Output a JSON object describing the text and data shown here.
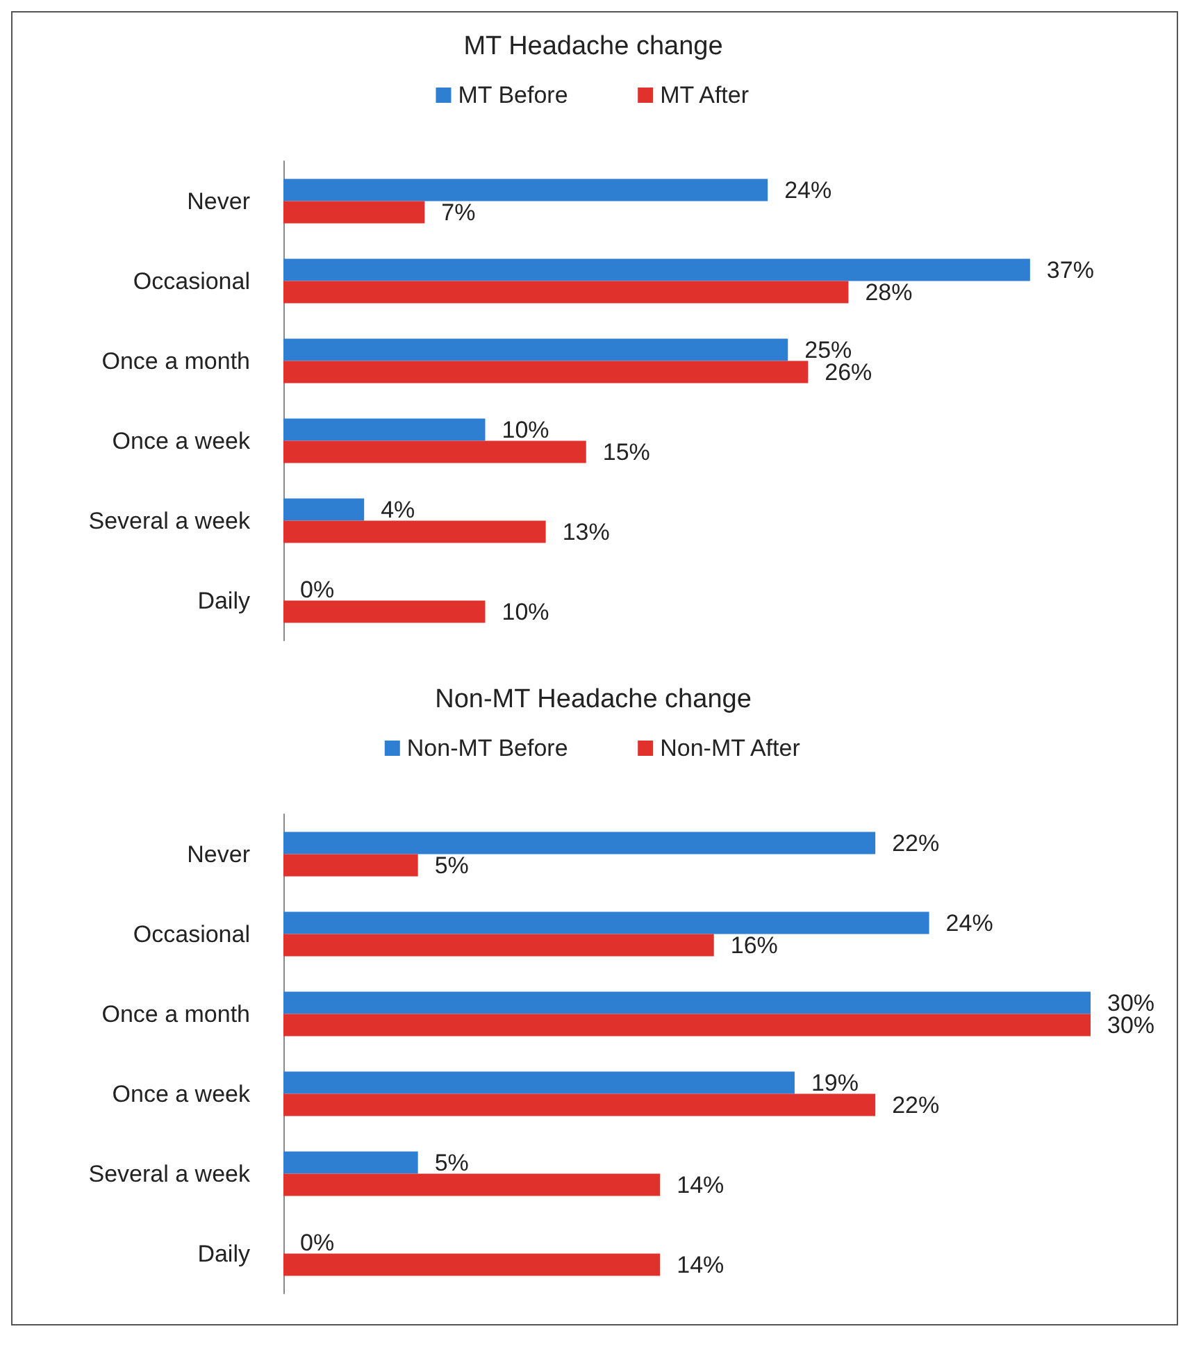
{
  "chart_data": [
    {
      "type": "bar",
      "orientation": "horizontal",
      "title": "MT Headache change",
      "categories": [
        "Never",
        "Occasional",
        "Once a month",
        "Once a week",
        "Several a week",
        "Daily"
      ],
      "legend": "top",
      "grid": false,
      "series": [
        {
          "name": "MT Before",
          "color": "#2e7fd2",
          "values": [
            24,
            37,
            25,
            10,
            4,
            0
          ],
          "value_labels": [
            "24%",
            "37%",
            "25%",
            "10%",
            "4%",
            "0%"
          ]
        },
        {
          "name": "MT After",
          "color": "#e0312c",
          "values": [
            7,
            28,
            26,
            15,
            13,
            10
          ],
          "value_labels": [
            "7%",
            "28%",
            "26%",
            "15%",
            "13%",
            "10%"
          ]
        }
      ]
    },
    {
      "type": "bar",
      "orientation": "horizontal",
      "title": "Non-MT Headache change",
      "categories": [
        "Never",
        "Occasional",
        "Once a month",
        "Once a week",
        "Several a week",
        "Daily"
      ],
      "legend": "top",
      "grid": false,
      "series": [
        {
          "name": "Non-MT Before",
          "color": "#2e7fd2",
          "values": [
            22,
            24,
            30,
            19,
            5,
            0
          ],
          "value_labels": [
            "22%",
            "24%",
            "30%",
            "19%",
            "5%",
            "0%"
          ]
        },
        {
          "name": "Non-MT After",
          "color": "#e0312c",
          "values": [
            5,
            16,
            30,
            22,
            14,
            14
          ],
          "value_labels": [
            "5%",
            "16%",
            "30%",
            "22%",
            "14%",
            "14%"
          ]
        }
      ]
    }
  ]
}
